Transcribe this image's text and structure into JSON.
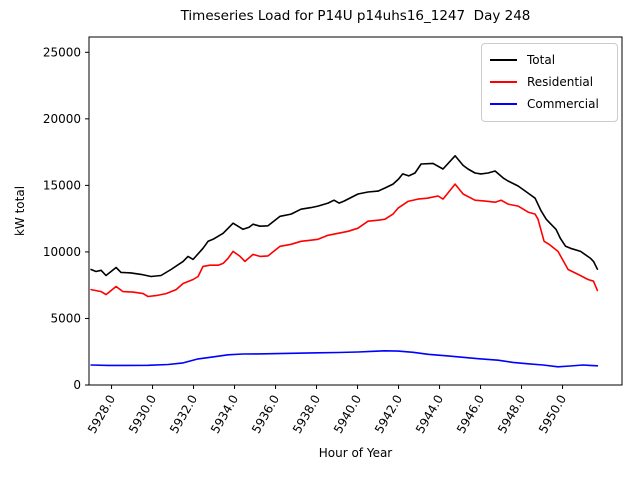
{
  "figure": {
    "title": "Timeseries Load for P14U p14uhs16_1247  Day 248",
    "background_color": "#ffffff"
  },
  "chart_data": {
    "type": "line",
    "title": "Timeseries Load for P14U p14uhs16_1247  Day 248",
    "xlabel": "Hour of Year",
    "ylabel": "kW total",
    "xlim": [
      5926.9,
      5952.9
    ],
    "ylim": [
      0,
      26150
    ],
    "grid": false,
    "legend_position": "upper right",
    "legend_border_color": "#cccccc",
    "x_tick_values": [
      5928,
      5930,
      5932,
      5934,
      5936,
      5938,
      5940,
      5942,
      5944,
      5946,
      5948,
      5950
    ],
    "x_tick_labels": [
      "5928.0",
      "5930.0",
      "5932.0",
      "5934.0",
      "5936.0",
      "5938.0",
      "5940.0",
      "5942.0",
      "5944.0",
      "5946.0",
      "5948.0",
      "5950.0"
    ],
    "x_tick_rotation_deg": 60,
    "y_tick_values": [
      0,
      5000,
      10000,
      15000,
      20000,
      25000
    ],
    "y_tick_labels": [
      "0",
      "5000",
      "10000",
      "15000",
      "20000",
      "25000"
    ],
    "series": [
      {
        "name": "Total",
        "color": "#000000",
        "points": [
          [
            5927.0,
            8680
          ],
          [
            5927.24,
            8530
          ],
          [
            5927.49,
            8620
          ],
          [
            5927.73,
            8230
          ],
          [
            5928.22,
            8830
          ],
          [
            5928.46,
            8460
          ],
          [
            5928.95,
            8420
          ],
          [
            5929.44,
            8310
          ],
          [
            5929.93,
            8150
          ],
          [
            5930.41,
            8230
          ],
          [
            5930.9,
            8680
          ],
          [
            5931.49,
            9290
          ],
          [
            5931.73,
            9660
          ],
          [
            5931.98,
            9440
          ],
          [
            5932.46,
            10270
          ],
          [
            5932.71,
            10800
          ],
          [
            5932.95,
            10950
          ],
          [
            5933.44,
            11400
          ],
          [
            5933.93,
            12160
          ],
          [
            5934.41,
            11700
          ],
          [
            5934.71,
            11860
          ],
          [
            5934.9,
            12080
          ],
          [
            5935.24,
            11930
          ],
          [
            5935.63,
            11960
          ],
          [
            5936.22,
            12680
          ],
          [
            5936.76,
            12840
          ],
          [
            5937.24,
            13210
          ],
          [
            5937.73,
            13330
          ],
          [
            5938.07,
            13440
          ],
          [
            5938.56,
            13670
          ],
          [
            5938.85,
            13890
          ],
          [
            5939.1,
            13670
          ],
          [
            5939.34,
            13820
          ],
          [
            5940.02,
            14350
          ],
          [
            5940.51,
            14500
          ],
          [
            5941.0,
            14570
          ],
          [
            5941.34,
            14800
          ],
          [
            5941.73,
            15100
          ],
          [
            5942.0,
            15480
          ],
          [
            5942.2,
            15860
          ],
          [
            5942.5,
            15710
          ],
          [
            5942.8,
            15930
          ],
          [
            5943.1,
            16610
          ],
          [
            5943.68,
            16650
          ],
          [
            5944.17,
            16230
          ],
          [
            5944.76,
            17220
          ],
          [
            5945.15,
            16500
          ],
          [
            5945.39,
            16230
          ],
          [
            5945.73,
            15930
          ],
          [
            5946.02,
            15860
          ],
          [
            5946.37,
            15930
          ],
          [
            5946.71,
            16080
          ],
          [
            5947.1,
            15560
          ],
          [
            5947.34,
            15330
          ],
          [
            5947.83,
            14950
          ],
          [
            5948.32,
            14420
          ],
          [
            5948.66,
            14040
          ],
          [
            5948.95,
            13100
          ],
          [
            5949.2,
            12460
          ],
          [
            5949.39,
            12160
          ],
          [
            5949.68,
            11700
          ],
          [
            5949.9,
            11000
          ],
          [
            5950.15,
            10420
          ],
          [
            5950.39,
            10270
          ],
          [
            5950.88,
            10040
          ],
          [
            5951.37,
            9510
          ],
          [
            5951.51,
            9290
          ],
          [
            5951.7,
            8700
          ]
        ]
      },
      {
        "name": "Residential",
        "color": "#ff0000",
        "points": [
          [
            5927.0,
            7170
          ],
          [
            5927.49,
            7020
          ],
          [
            5927.73,
            6795
          ],
          [
            5928.22,
            7400
          ],
          [
            5928.56,
            7020
          ],
          [
            5929.05,
            6980
          ],
          [
            5929.54,
            6870
          ],
          [
            5929.78,
            6650
          ],
          [
            5930.17,
            6720
          ],
          [
            5930.66,
            6870
          ],
          [
            5931.15,
            7170
          ],
          [
            5931.49,
            7630
          ],
          [
            5931.98,
            7930
          ],
          [
            5932.22,
            8150
          ],
          [
            5932.46,
            8910
          ],
          [
            5932.8,
            9000
          ],
          [
            5933.2,
            9000
          ],
          [
            5933.44,
            9140
          ],
          [
            5933.68,
            9510
          ],
          [
            5933.93,
            10040
          ],
          [
            5934.27,
            9660
          ],
          [
            5934.51,
            9290
          ],
          [
            5934.9,
            9815
          ],
          [
            5935.24,
            9660
          ],
          [
            5935.63,
            9700
          ],
          [
            5936.22,
            10420
          ],
          [
            5936.76,
            10570
          ],
          [
            5937.24,
            10800
          ],
          [
            5937.73,
            10880
          ],
          [
            5938.07,
            10950
          ],
          [
            5938.56,
            11250
          ],
          [
            5939.05,
            11400
          ],
          [
            5939.54,
            11550
          ],
          [
            5940.02,
            11780
          ],
          [
            5940.51,
            12310
          ],
          [
            5941.0,
            12380
          ],
          [
            5941.34,
            12460
          ],
          [
            5941.73,
            12840
          ],
          [
            5941.98,
            13290
          ],
          [
            5942.46,
            13800
          ],
          [
            5942.95,
            13970
          ],
          [
            5943.4,
            14040
          ],
          [
            5943.93,
            14200
          ],
          [
            5944.17,
            13970
          ],
          [
            5944.76,
            15100
          ],
          [
            5945.15,
            14350
          ],
          [
            5945.73,
            13890
          ],
          [
            5946.22,
            13820
          ],
          [
            5946.71,
            13740
          ],
          [
            5947.0,
            13890
          ],
          [
            5947.34,
            13590
          ],
          [
            5947.83,
            13440
          ],
          [
            5948.32,
            12990
          ],
          [
            5948.66,
            12840
          ],
          [
            5948.8,
            12460
          ],
          [
            5949.1,
            10800
          ],
          [
            5949.34,
            10570
          ],
          [
            5949.78,
            10040
          ],
          [
            5950.27,
            8680
          ],
          [
            5950.76,
            8310
          ],
          [
            5951.24,
            7930
          ],
          [
            5951.51,
            7800
          ],
          [
            5951.7,
            7100
          ]
        ]
      },
      {
        "name": "Commercial",
        "color": "#0000ff",
        "points": [
          [
            5927.0,
            1500
          ],
          [
            5927.83,
            1470
          ],
          [
            5928.8,
            1470
          ],
          [
            5929.78,
            1480
          ],
          [
            5930.76,
            1540
          ],
          [
            5931.49,
            1660
          ],
          [
            5932.22,
            1960
          ],
          [
            5932.95,
            2110
          ],
          [
            5933.68,
            2270
          ],
          [
            5934.41,
            2330
          ],
          [
            5935.15,
            2340
          ],
          [
            5936.12,
            2360
          ],
          [
            5937.1,
            2390
          ],
          [
            5938.07,
            2420
          ],
          [
            5939.05,
            2440
          ],
          [
            5940.02,
            2480
          ],
          [
            5940.76,
            2530
          ],
          [
            5941.34,
            2570
          ],
          [
            5941.98,
            2550
          ],
          [
            5942.71,
            2460
          ],
          [
            5943.44,
            2310
          ],
          [
            5944.41,
            2190
          ],
          [
            5945.88,
            1980
          ],
          [
            5946.85,
            1860
          ],
          [
            5947.59,
            1700
          ],
          [
            5948.32,
            1590
          ],
          [
            5949.05,
            1500
          ],
          [
            5949.78,
            1370
          ],
          [
            5950.37,
            1430
          ],
          [
            5951.0,
            1500
          ],
          [
            5951.34,
            1470
          ],
          [
            5951.7,
            1440
          ]
        ]
      }
    ]
  }
}
